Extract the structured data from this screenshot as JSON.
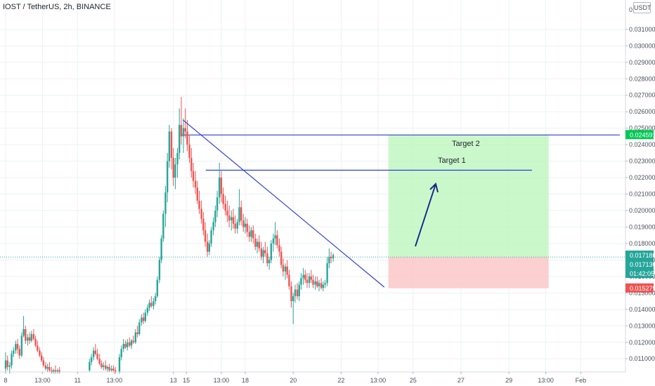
{
  "header": {
    "title": "IOST / TetherUS, 2h, BINANCE",
    "currency_badge": "USDT"
  },
  "colors": {
    "up": "#26a69a",
    "down": "#ef5350",
    "trendline": "#2f3fd6",
    "target_zone": "#b9f6b9",
    "stop_zone": "#fcc8c8",
    "grid": "#eef0f4",
    "axis_text": "#4a4e59"
  },
  "chart_data": {
    "type": "candlestick",
    "symbol": "IOST / TetherUS",
    "interval": "2h",
    "exchange": "BINANCE",
    "ylim": [
      0.0102,
      0.0324
    ],
    "y_ticks": [
      "0.031000",
      "0.030000",
      "0.029000",
      "0.028000",
      "0.027000",
      "0.026000",
      "0.025000",
      "0.024000",
      "0.023000",
      "0.022000",
      "0.021000",
      "0.020000",
      "0.019000",
      "0.018000",
      "0.017000",
      "0.016000",
      "0.015000",
      "0.014000",
      "0.013000",
      "0.012000",
      "0.011000"
    ],
    "y_top_label": "0",
    "x_ticks": [
      "8",
      "13:00",
      "11",
      "13:00",
      "13",
      "15",
      "13:00",
      "18",
      "20",
      "22",
      "13:00",
      "25",
      "27",
      "29",
      "13:00",
      "Feb"
    ],
    "price_labels": [
      {
        "value": "0.024591",
        "color": "#00c853"
      },
      {
        "value": "0.017180",
        "color": "#26a69a"
      },
      {
        "value": "0.017130",
        "color": "#26a69a"
      },
      {
        "value": "01:42:05",
        "color": "#26a69a"
      },
      {
        "value": "0.015279",
        "color": "#ef5350"
      }
    ],
    "horizontal_levels": [
      0.02459,
      0.02245
    ],
    "current_price": 0.01718,
    "stop_level": 0.01528,
    "annotations": [
      "Target 2",
      "Target 1"
    ],
    "trendline": {
      "from": {
        "x": 15.4,
        "price": 0.0255
      },
      "to": {
        "x": 23.8,
        "price": 0.01535
      }
    },
    "candles": [
      [
        8.0,
        0.0104,
        0.0114,
        0.0101,
        0.0109
      ],
      [
        8.08,
        0.0109,
        0.0112,
        0.0103,
        0.0105
      ],
      [
        8.17,
        0.0105,
        0.0108,
        0.0101,
        0.0106
      ],
      [
        8.25,
        0.0106,
        0.0115,
        0.0104,
        0.0113
      ],
      [
        8.33,
        0.0113,
        0.0117,
        0.0111,
        0.0115
      ],
      [
        8.42,
        0.0115,
        0.0121,
        0.0113,
        0.0119
      ],
      [
        8.5,
        0.0119,
        0.0122,
        0.0113,
        0.0116
      ],
      [
        8.58,
        0.0116,
        0.0118,
        0.011,
        0.0112
      ],
      [
        8.67,
        0.0112,
        0.0126,
        0.0111,
        0.0124
      ],
      [
        8.75,
        0.0124,
        0.0136,
        0.0123,
        0.0128
      ],
      [
        8.83,
        0.0128,
        0.013,
        0.0119,
        0.0121
      ],
      [
        8.92,
        0.0121,
        0.0125,
        0.0118,
        0.0123
      ],
      [
        9.0,
        0.0123,
        0.0126,
        0.0119,
        0.0121
      ],
      [
        9.08,
        0.0121,
        0.0127,
        0.012,
        0.0125
      ],
      [
        9.17,
        0.0125,
        0.0128,
        0.0121,
        0.0122
      ],
      [
        9.25,
        0.0122,
        0.0124,
        0.0117,
        0.0118
      ],
      [
        9.33,
        0.0118,
        0.0121,
        0.0114,
        0.0115
      ],
      [
        9.42,
        0.0115,
        0.0117,
        0.0111,
        0.0112
      ],
      [
        9.5,
        0.0112,
        0.0114,
        0.0108,
        0.0109
      ],
      [
        9.58,
        0.0109,
        0.0111,
        0.0105,
        0.0106
      ],
      [
        9.67,
        0.0106,
        0.0108,
        0.0103,
        0.0104
      ],
      [
        9.75,
        0.0104,
        0.0107,
        0.0102,
        0.0105
      ],
      [
        9.83,
        0.0105,
        0.0108,
        0.0102,
        0.0103
      ],
      [
        9.92,
        0.0103,
        0.0105,
        0.0101,
        0.0102
      ],
      [
        10.0,
        0.0102,
        0.0104,
        0.0101,
        0.0103
      ],
      [
        10.08,
        0.0103,
        0.0106,
        0.0101,
        0.0102
      ],
      [
        10.17,
        0.0102,
        0.0104,
        0.0101,
        0.0103
      ],
      [
        10.25,
        0.0103,
        0.0105,
        0.0101,
        0.0102
      ],
      [
        11.5,
        0.0103,
        0.011,
        0.0102,
        0.0108
      ],
      [
        11.58,
        0.0108,
        0.0113,
        0.0106,
        0.0111
      ],
      [
        11.67,
        0.0111,
        0.0117,
        0.0109,
        0.0115
      ],
      [
        11.75,
        0.0115,
        0.0119,
        0.0112,
        0.0113
      ],
      [
        11.83,
        0.0113,
        0.0116,
        0.0109,
        0.011
      ],
      [
        11.92,
        0.011,
        0.0113,
        0.0106,
        0.0107
      ],
      [
        12.0,
        0.0107,
        0.0109,
        0.0104,
        0.0105
      ],
      [
        12.08,
        0.0105,
        0.0108,
        0.0103,
        0.0106
      ],
      [
        12.17,
        0.0106,
        0.0109,
        0.0103,
        0.0104
      ],
      [
        12.25,
        0.0104,
        0.0106,
        0.0102,
        0.0105
      ],
      [
        12.33,
        0.0105,
        0.0107,
        0.0102,
        0.0103
      ],
      [
        12.42,
        0.0103,
        0.0106,
        0.0102,
        0.0104
      ],
      [
        12.5,
        0.0104,
        0.0106,
        0.0102,
        0.0103
      ],
      [
        12.58,
        0.0103,
        0.0105,
        0.0101,
        0.0102
      ],
      [
        12.75,
        0.0102,
        0.0113,
        0.0101,
        0.0111
      ],
      [
        12.83,
        0.0111,
        0.0118,
        0.0109,
        0.0116
      ],
      [
        12.92,
        0.0116,
        0.0122,
        0.0114,
        0.0119
      ],
      [
        13.0,
        0.0119,
        0.0121,
        0.0116,
        0.0117
      ],
      [
        13.08,
        0.0117,
        0.0122,
        0.0115,
        0.012
      ],
      [
        13.17,
        0.012,
        0.0123,
        0.0117,
        0.0118
      ],
      [
        13.25,
        0.0118,
        0.0122,
        0.0116,
        0.0121
      ],
      [
        13.33,
        0.0121,
        0.0124,
        0.0119,
        0.012
      ],
      [
        13.42,
        0.012,
        0.0128,
        0.0119,
        0.0126
      ],
      [
        13.5,
        0.0126,
        0.013,
        0.0123,
        0.0125
      ],
      [
        13.58,
        0.0125,
        0.0134,
        0.0124,
        0.0132
      ],
      [
        13.67,
        0.0132,
        0.0137,
        0.013,
        0.0135
      ],
      [
        13.75,
        0.0135,
        0.0138,
        0.0131,
        0.0133
      ],
      [
        13.83,
        0.0133,
        0.014,
        0.0132,
        0.0138
      ],
      [
        13.92,
        0.0138,
        0.0143,
        0.0136,
        0.0141
      ],
      [
        14.0,
        0.0141,
        0.0146,
        0.0139,
        0.0144
      ],
      [
        14.08,
        0.0144,
        0.0148,
        0.0141,
        0.0142
      ],
      [
        14.17,
        0.0142,
        0.0147,
        0.014,
        0.0145
      ],
      [
        14.25,
        0.0145,
        0.015,
        0.0143,
        0.0148
      ],
      [
        14.33,
        0.0148,
        0.016,
        0.0147,
        0.0158
      ],
      [
        14.42,
        0.0158,
        0.0172,
        0.0156,
        0.017
      ],
      [
        14.5,
        0.017,
        0.0185,
        0.0168,
        0.0183
      ],
      [
        14.58,
        0.0183,
        0.02,
        0.0181,
        0.0198
      ],
      [
        14.67,
        0.0198,
        0.0215,
        0.019,
        0.0211
      ],
      [
        14.75,
        0.0211,
        0.0235,
        0.0205,
        0.023
      ],
      [
        14.83,
        0.023,
        0.0252,
        0.0226,
        0.0248
      ],
      [
        14.92,
        0.0248,
        0.025,
        0.0225,
        0.0232
      ],
      [
        15.0,
        0.0232,
        0.0238,
        0.0215,
        0.022
      ],
      [
        15.08,
        0.022,
        0.0232,
        0.0213,
        0.0228
      ],
      [
        15.17,
        0.0228,
        0.0238,
        0.022,
        0.0235
      ],
      [
        15.25,
        0.0235,
        0.0262,
        0.0231,
        0.0252
      ],
      [
        15.33,
        0.0252,
        0.0269,
        0.024,
        0.0245
      ],
      [
        15.42,
        0.0245,
        0.0256,
        0.0235,
        0.025
      ],
      [
        15.5,
        0.025,
        0.0262,
        0.0244,
        0.0248
      ],
      [
        15.58,
        0.0248,
        0.0255,
        0.0236,
        0.024
      ],
      [
        15.67,
        0.024,
        0.0246,
        0.0229,
        0.0232
      ],
      [
        15.75,
        0.0232,
        0.0238,
        0.022,
        0.0224
      ],
      [
        15.83,
        0.0224,
        0.0229,
        0.0214,
        0.0218
      ],
      [
        15.92,
        0.0218,
        0.0224,
        0.021,
        0.0214
      ],
      [
        16.0,
        0.0214,
        0.0218,
        0.0204,
        0.0206
      ],
      [
        16.08,
        0.0206,
        0.0212,
        0.0198,
        0.0201
      ],
      [
        16.17,
        0.0201,
        0.0206,
        0.0192,
        0.0195
      ],
      [
        16.25,
        0.0195,
        0.0199,
        0.0185,
        0.0188
      ],
      [
        16.33,
        0.0188,
        0.0193,
        0.0178,
        0.0181
      ],
      [
        16.42,
        0.0181,
        0.0186,
        0.0172,
        0.0175
      ],
      [
        16.5,
        0.0175,
        0.0182,
        0.0173,
        0.018
      ],
      [
        16.58,
        0.018,
        0.019,
        0.0178,
        0.0188
      ],
      [
        16.67,
        0.0188,
        0.0196,
        0.0185,
        0.0193
      ],
      [
        16.75,
        0.0193,
        0.0203,
        0.019,
        0.02
      ],
      [
        16.83,
        0.02,
        0.0212,
        0.0196,
        0.0208
      ],
      [
        16.92,
        0.0208,
        0.0229,
        0.0204,
        0.022
      ],
      [
        17.0,
        0.022,
        0.0224,
        0.0205,
        0.021
      ],
      [
        17.08,
        0.021,
        0.0214,
        0.0201,
        0.0204
      ],
      [
        17.17,
        0.0204,
        0.0209,
        0.0197,
        0.02
      ],
      [
        17.25,
        0.02,
        0.0206,
        0.0193,
        0.0197
      ],
      [
        17.33,
        0.0197,
        0.0203,
        0.019,
        0.0194
      ],
      [
        17.42,
        0.0194,
        0.02,
        0.0188,
        0.0196
      ],
      [
        17.5,
        0.0196,
        0.0201,
        0.0189,
        0.0192
      ],
      [
        17.58,
        0.0192,
        0.0197,
        0.0186,
        0.0189
      ],
      [
        17.67,
        0.0189,
        0.0195,
        0.0186,
        0.0193
      ],
      [
        17.75,
        0.0193,
        0.0213,
        0.0191,
        0.0202
      ],
      [
        17.83,
        0.0202,
        0.0206,
        0.0191,
        0.0194
      ],
      [
        17.92,
        0.0194,
        0.0198,
        0.0187,
        0.019
      ],
      [
        18.0,
        0.019,
        0.0196,
        0.0186,
        0.0192
      ],
      [
        18.08,
        0.0192,
        0.0195,
        0.0184,
        0.0187
      ],
      [
        18.17,
        0.0187,
        0.0191,
        0.0181,
        0.0184
      ],
      [
        18.25,
        0.0184,
        0.019,
        0.0181,
        0.0188
      ],
      [
        18.33,
        0.0188,
        0.0191,
        0.018,
        0.0183
      ],
      [
        18.42,
        0.0183,
        0.0186,
        0.0176,
        0.0178
      ],
      [
        18.5,
        0.0178,
        0.0183,
        0.0174,
        0.0181
      ],
      [
        18.58,
        0.0181,
        0.0185,
        0.0175,
        0.0177
      ],
      [
        18.67,
        0.0177,
        0.0181,
        0.017,
        0.0172
      ],
      [
        18.75,
        0.0172,
        0.0178,
        0.0168,
        0.0176
      ],
      [
        18.83,
        0.0176,
        0.0181,
        0.0172,
        0.0174
      ],
      [
        18.92,
        0.0174,
        0.0178,
        0.0166,
        0.0168
      ],
      [
        19.0,
        0.0168,
        0.0172,
        0.0164,
        0.017
      ],
      [
        19.08,
        0.017,
        0.0182,
        0.0168,
        0.018
      ],
      [
        19.17,
        0.018,
        0.0186,
        0.0175,
        0.0183
      ],
      [
        19.25,
        0.0183,
        0.0193,
        0.0179,
        0.0185
      ],
      [
        19.33,
        0.0185,
        0.0188,
        0.0177,
        0.0179
      ],
      [
        19.42,
        0.0179,
        0.0183,
        0.0172,
        0.0175
      ],
      [
        19.5,
        0.0175,
        0.0178,
        0.0165,
        0.0167
      ],
      [
        19.58,
        0.0167,
        0.0171,
        0.016,
        0.0163
      ],
      [
        19.67,
        0.0163,
        0.0168,
        0.0158,
        0.0166
      ],
      [
        19.75,
        0.0166,
        0.017,
        0.0159,
        0.0161
      ],
      [
        19.83,
        0.0161,
        0.0164,
        0.0152,
        0.0154
      ],
      [
        19.92,
        0.0154,
        0.0157,
        0.0141,
        0.0145
      ],
      [
        20.0,
        0.0145,
        0.015,
        0.0131,
        0.0148
      ],
      [
        20.08,
        0.0148,
        0.0155,
        0.0144,
        0.0152
      ],
      [
        20.17,
        0.0152,
        0.0156,
        0.0146,
        0.0148
      ],
      [
        20.25,
        0.0148,
        0.0157,
        0.0145,
        0.0155
      ],
      [
        20.33,
        0.0155,
        0.0162,
        0.0152,
        0.0159
      ],
      [
        20.42,
        0.0159,
        0.0165,
        0.0155,
        0.0161
      ],
      [
        20.5,
        0.0161,
        0.0164,
        0.0156,
        0.0158
      ],
      [
        20.58,
        0.0158,
        0.0162,
        0.0153,
        0.0156
      ],
      [
        20.67,
        0.0156,
        0.0162,
        0.0153,
        0.016
      ],
      [
        20.75,
        0.016,
        0.0164,
        0.0156,
        0.0158
      ],
      [
        20.83,
        0.0158,
        0.0161,
        0.0153,
        0.0155
      ],
      [
        20.92,
        0.0155,
        0.016,
        0.0152,
        0.0157
      ],
      [
        21.0,
        0.0157,
        0.016,
        0.0153,
        0.0154
      ],
      [
        21.08,
        0.0154,
        0.0158,
        0.0151,
        0.0156
      ],
      [
        21.17,
        0.0156,
        0.0159,
        0.0152,
        0.0153
      ],
      [
        21.25,
        0.0153,
        0.0157,
        0.0151,
        0.0155
      ],
      [
        21.33,
        0.0155,
        0.0158,
        0.0153,
        0.0156
      ],
      [
        21.42,
        0.0156,
        0.0172,
        0.0154,
        0.0168
      ],
      [
        21.5,
        0.0168,
        0.0177,
        0.0165,
        0.0172
      ],
      [
        21.58,
        0.0172,
        0.0175,
        0.0168,
        0.0171
      ],
      [
        21.67,
        0.0171,
        0.0174,
        0.0169,
        0.0173
      ]
    ]
  }
}
